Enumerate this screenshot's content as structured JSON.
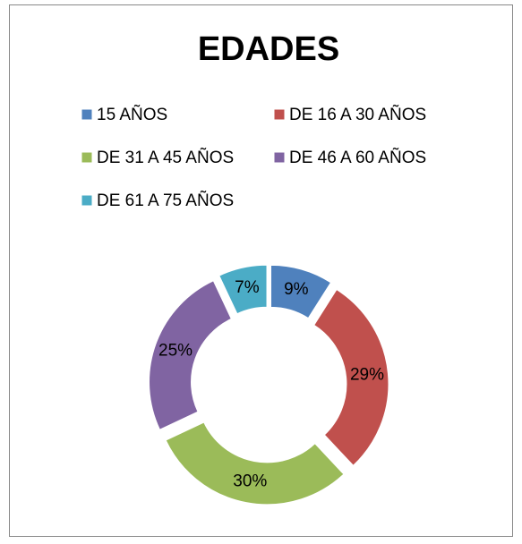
{
  "chart_data": {
    "type": "donut",
    "title": "EDADES",
    "categories": [
      "15 AÑOS",
      "DE 16 A 30 AÑOS",
      "DE 31 A 45 AÑOS",
      "DE 46 A 60 AÑOS",
      "DE 61 A 75 AÑOS"
    ],
    "values": [
      9,
      29,
      30,
      25,
      7
    ],
    "value_labels": [
      "9%",
      "29%",
      "30%",
      "25%",
      "7%"
    ],
    "colors": [
      "#4f81bd",
      "#c0504d",
      "#9bbb59",
      "#8064a2",
      "#4bacc6"
    ]
  }
}
